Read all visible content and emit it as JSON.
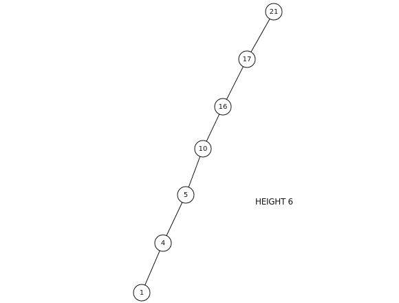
{
  "tree": {
    "nodes": [
      "21",
      "17",
      "16",
      "10",
      "5",
      "4",
      "1"
    ]
  },
  "annotation": {
    "height_label": "HEIGHT 6"
  }
}
